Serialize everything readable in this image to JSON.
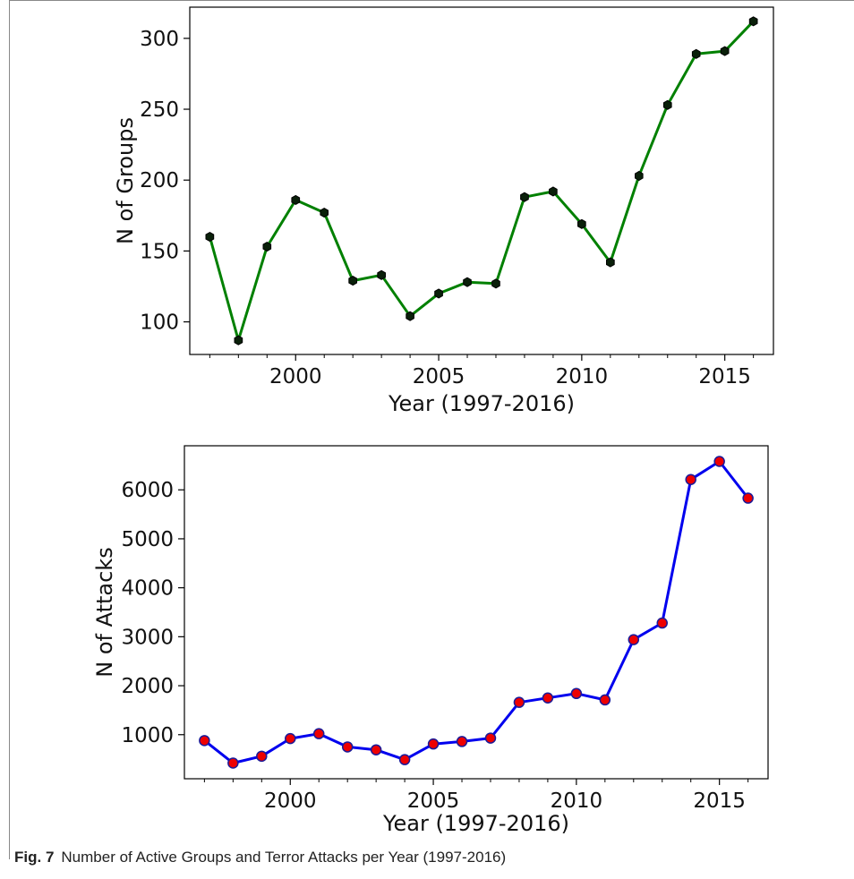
{
  "caption": {
    "label": "Fig. 7",
    "text": "Number of Active Groups and Terror Attacks per Year (1997-2016)"
  },
  "chart_data": [
    {
      "type": "line",
      "xlabel": "Year (1997-2016)",
      "ylabel": "N of Groups",
      "x": [
        1997,
        1998,
        1999,
        2000,
        2001,
        2002,
        2003,
        2004,
        2005,
        2006,
        2007,
        2008,
        2009,
        2010,
        2011,
        2012,
        2013,
        2014,
        2015,
        2016
      ],
      "series": [
        {
          "values": [
            160,
            87,
            153,
            186,
            177,
            129,
            133,
            104,
            120,
            128,
            127,
            188,
            192,
            169,
            142,
            203,
            253,
            289,
            291,
            312
          ]
        }
      ],
      "xticks": [
        2000,
        2005,
        2010,
        2015
      ],
      "yticks": [
        100,
        150,
        200,
        250,
        300
      ],
      "xlim": [
        1996.3,
        2016.7
      ],
      "ylim": [
        77,
        322
      ],
      "line_color": "#008000",
      "marker_color": "#0a200a",
      "marker": "hexagon",
      "grid": false,
      "legend": "none"
    },
    {
      "type": "line",
      "xlabel": "Year (1997-2016)",
      "ylabel": "N of Attacks",
      "x": [
        1997,
        1998,
        1999,
        2000,
        2001,
        2002,
        2003,
        2004,
        2005,
        2006,
        2007,
        2008,
        2009,
        2010,
        2011,
        2012,
        2013,
        2014,
        2015,
        2016
      ],
      "series": [
        {
          "values": [
            880,
            420,
            560,
            920,
            1020,
            750,
            690,
            490,
            810,
            860,
            930,
            1660,
            1750,
            1840,
            1710,
            2940,
            3280,
            6210,
            6580,
            5830
          ]
        }
      ],
      "xticks": [
        2000,
        2005,
        2010,
        2015
      ],
      "yticks": [
        1000,
        2000,
        3000,
        4000,
        5000,
        6000
      ],
      "xlim": [
        1996.3,
        2016.7
      ],
      "ylim": [
        100,
        6900
      ],
      "line_color": "#0000ee",
      "marker_color": "#ee0000",
      "marker_edge": "#1a1a99",
      "marker": "circle",
      "grid": false,
      "legend": "none"
    }
  ]
}
